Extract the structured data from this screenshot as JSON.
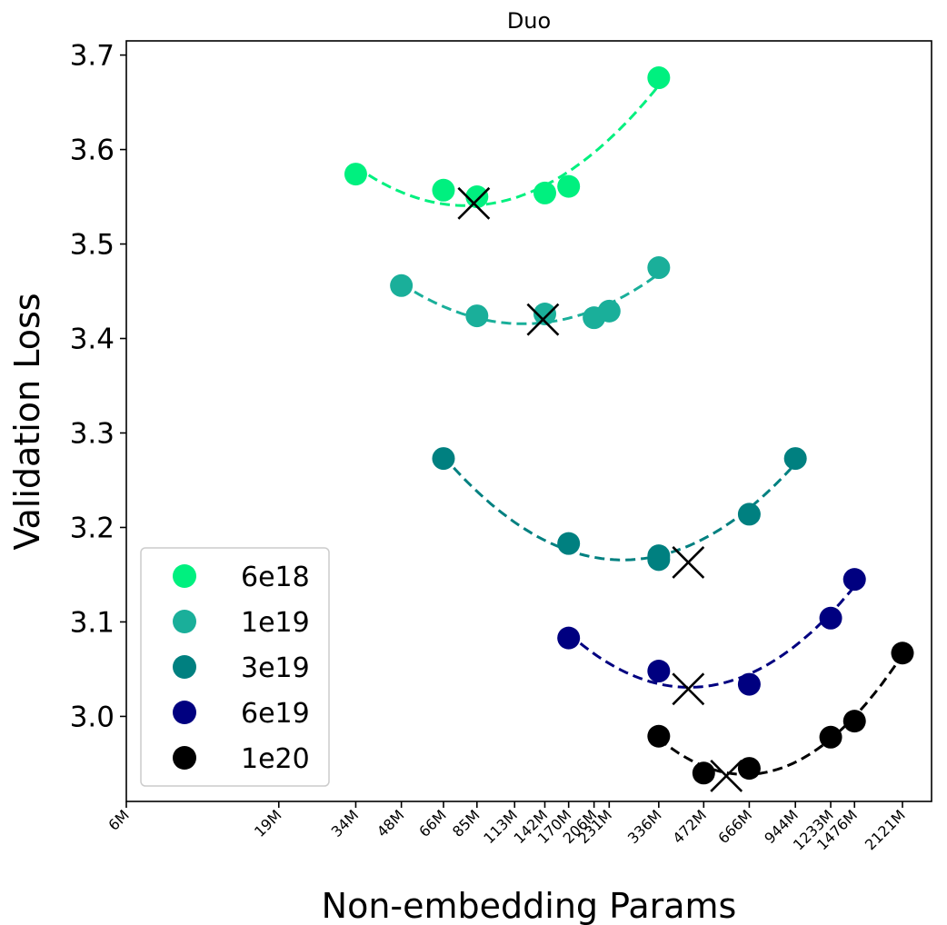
{
  "chart_data": {
    "type": "scatter",
    "title": "Duo",
    "xlabel": "Non-embedding Params",
    "ylabel": "Validation Loss",
    "x_scale": "log",
    "xlim_millions": [
      6,
      2121
    ],
    "ylim": [
      2.91,
      3.715
    ],
    "yticks": [
      "3.0",
      "3.1",
      "3.2",
      "3.3",
      "3.4",
      "3.5",
      "3.6",
      "3.7"
    ],
    "xticks": [
      {
        "label": "6M",
        "value": 6
      },
      {
        "label": "19M",
        "value": 19
      },
      {
        "label": "34M",
        "value": 34
      },
      {
        "label": "48M",
        "value": 48
      },
      {
        "label": "66M",
        "value": 66
      },
      {
        "label": "85M",
        "value": 85
      },
      {
        "label": "113M",
        "value": 113
      },
      {
        "label": "142M",
        "value": 142
      },
      {
        "label": "170M",
        "value": 170
      },
      {
        "label": "206M",
        "value": 206
      },
      {
        "label": "231M",
        "value": 231
      },
      {
        "label": "336M",
        "value": 336
      },
      {
        "label": "472M",
        "value": 472
      },
      {
        "label": "666M",
        "value": 666
      },
      {
        "label": "944M",
        "value": 944
      },
      {
        "label": "1233M",
        "value": 1233
      },
      {
        "label": "1476M",
        "value": 1476
      },
      {
        "label": "2121M",
        "value": 2121
      }
    ],
    "legend_position": "lower-left",
    "grid": false,
    "series": [
      {
        "name": "6e18",
        "color": "#00f07f",
        "x": [
          34,
          66,
          85,
          142,
          170,
          336
        ],
        "y": [
          3.574,
          3.557,
          3.55,
          3.554,
          3.561,
          3.676
        ],
        "optimum": {
          "x": 83,
          "y": 3.543
        }
      },
      {
        "name": "1e19",
        "color": "#1aaf9a",
        "x": [
          48,
          85,
          142,
          206,
          231,
          336
        ],
        "y": [
          3.456,
          3.424,
          3.426,
          3.422,
          3.429,
          3.475
        ],
        "optimum": {
          "x": 140,
          "y": 3.42
        }
      },
      {
        "name": "3e19",
        "color": "#008080",
        "x": [
          66,
          170,
          336,
          944
        ],
        "y": [
          3.273,
          3.183,
          3.166,
          3.273
        ],
        "optimum": {
          "x": 420,
          "y": 3.163
        },
        "extra_points": {
          "x": [
            336,
            666
          ],
          "y": [
            3.17,
            3.214
          ]
        }
      },
      {
        "name": "6e19",
        "color": "#000080",
        "x": [
          170,
          336,
          666,
          1233,
          1476
        ],
        "y": [
          3.083,
          3.048,
          3.034,
          3.104,
          3.145
        ],
        "optimum": {
          "x": 420,
          "y": 3.029
        }
      },
      {
        "name": "1e20",
        "color": "#000000",
        "x": [
          336,
          472,
          666,
          1233,
          1476,
          2121
        ],
        "y": [
          2.979,
          2.94,
          2.945,
          2.978,
          2.995,
          3.067
        ],
        "optimum": {
          "x": 560,
          "y": 2.937
        }
      }
    ]
  }
}
